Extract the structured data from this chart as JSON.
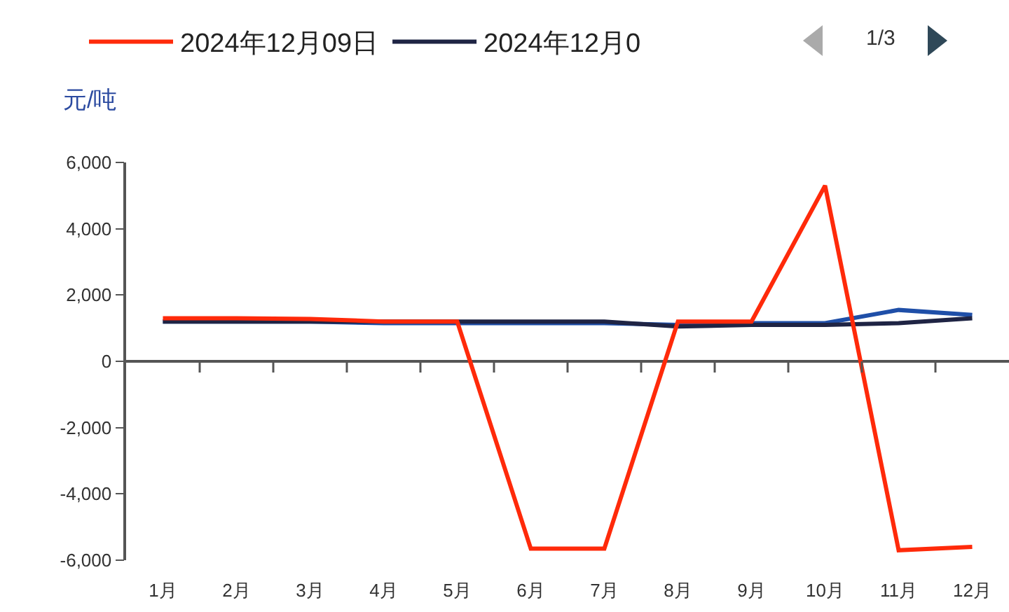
{
  "chart_data": {
    "type": "line",
    "ylabel": "元/吨",
    "categories": [
      "1月",
      "2月",
      "3月",
      "4月",
      "5月",
      "6月",
      "7月",
      "8月",
      "9月",
      "10月",
      "11月",
      "12月"
    ],
    "series": [
      {
        "name": "2024年12月09日",
        "color": "#ff2a0a",
        "values": [
          1300,
          1300,
          1280,
          1200,
          1200,
          -5650,
          -5650,
          1200,
          1200,
          5300,
          -5700,
          -5600
        ]
      },
      {
        "name": "2024年12月0",
        "color": "#1f2444",
        "values": [
          1200,
          1200,
          1200,
          1200,
          1200,
          1200,
          1200,
          1050,
          1100,
          1100,
          1150,
          1300
        ]
      },
      {
        "color": "#1f4fa8",
        "values": [
          1200,
          1200,
          1200,
          1150,
          1150,
          1150,
          1150,
          1100,
          1150,
          1150,
          1550,
          1400
        ]
      }
    ],
    "ylim": [
      -6000,
      6000
    ],
    "yticks": [
      {
        "value": 6000,
        "label": "6,000"
      },
      {
        "value": 4000,
        "label": "4,000"
      },
      {
        "value": 2000,
        "label": "2,000"
      },
      0,
      {
        "value": -2000,
        "label": "-2,000"
      },
      {
        "value": -4000,
        "label": "-4,000"
      },
      {
        "value": -6000,
        "label": "-6,000"
      }
    ],
    "legend": "top left",
    "annotations": [
      "1/3"
    ]
  }
}
